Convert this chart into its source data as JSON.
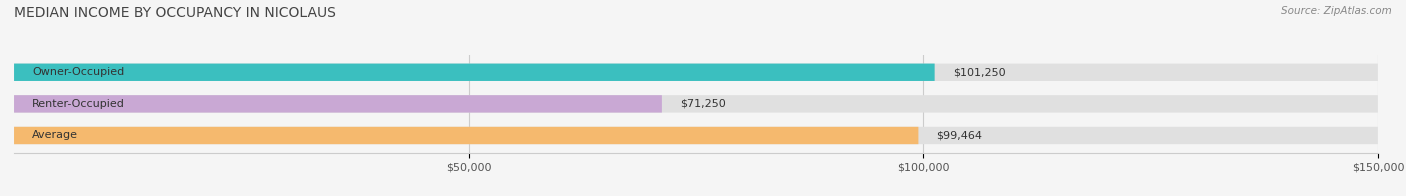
{
  "title": "MEDIAN INCOME BY OCCUPANCY IN NICOLAUS",
  "source": "Source: ZipAtlas.com",
  "categories": [
    "Owner-Occupied",
    "Renter-Occupied",
    "Average"
  ],
  "values": [
    101250,
    71250,
    99464
  ],
  "labels": [
    "$101,250",
    "$71,250",
    "$99,464"
  ],
  "bar_colors": [
    "#3bbfbf",
    "#c9a8d4",
    "#f5b96e"
  ],
  "bar_background": "#e0e0e0",
  "xlim": [
    0,
    150000
  ],
  "xticks": [
    50000,
    100000,
    150000
  ],
  "xtick_labels": [
    "$50,000",
    "$100,000",
    "$150,000"
  ],
  "title_fontsize": 10,
  "source_fontsize": 7.5,
  "bar_label_fontsize": 8,
  "category_fontsize": 8,
  "tick_fontsize": 8,
  "bar_height": 0.55,
  "background_color": "#f5f5f5"
}
